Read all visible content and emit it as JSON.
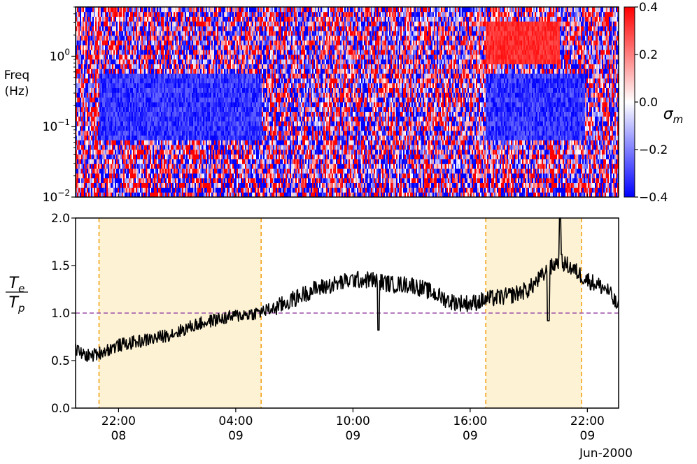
{
  "chart_data": [
    {
      "type": "heatmap",
      "title": "",
      "xlabel": "",
      "ylabel": "Freq\n(Hz)",
      "ylabel_lines": [
        "Freq",
        "(Hz)"
      ],
      "yscale": "log",
      "ylim": [
        0.01,
        5
      ],
      "yticks": [
        {
          "value": 0.01,
          "base": "10",
          "exp": "−2"
        },
        {
          "value": 0.1,
          "base": "10",
          "exp": "−1"
        },
        {
          "value": 1,
          "base": "10",
          "exp": "0"
        }
      ],
      "colorbar": {
        "label": "σ",
        "label_sub": "m",
        "range": [
          -0.4,
          0.4
        ],
        "ticks": [
          "0.4",
          "0.2",
          "0.0",
          "−0.2",
          "−0.4"
        ],
        "tick_values": [
          0.4,
          0.2,
          0.0,
          -0.2,
          -0.4
        ],
        "colormap": "bwr",
        "low_color": "#0000ff",
        "mid_color": "#ffffff",
        "high_color": "#ff0000"
      },
      "blue_regions_hours": [
        [
          -1.0,
          7.3
        ],
        [
          18.8,
          23.9
        ]
      ],
      "blue_band_freq_hz": [
        0.06,
        0.55
      ],
      "red_patch": {
        "hours": [
          18.8,
          22.6
        ],
        "freq_hz": [
          0.8,
          3.0
        ]
      }
    },
    {
      "type": "line",
      "title": "",
      "xlabel": "",
      "ylabel": "Te/Tp",
      "ylabel_num": {
        "base": "T",
        "sub": "e"
      },
      "ylabel_den": {
        "base": "T",
        "sub": "p"
      },
      "ylim": [
        0.0,
        2.0
      ],
      "yticks": [
        "0.0",
        "0.5",
        "1.0",
        "1.5",
        "2.0"
      ],
      "xlim_hours": [
        -2.2,
        25.6
      ],
      "series": [
        {
          "color": "#000000",
          "x_hours": [
            -2.2,
            -1.8,
            -1.4,
            -1.0,
            -0.5,
            0,
            1,
            2,
            3,
            4,
            5,
            6,
            7,
            8,
            9,
            10,
            11,
            12,
            13,
            14,
            15,
            16,
            17,
            18,
            19,
            20,
            21,
            22,
            22.5,
            23,
            24,
            25,
            25.6
          ],
          "y": [
            0.62,
            0.56,
            0.55,
            0.58,
            0.62,
            0.66,
            0.7,
            0.74,
            0.8,
            0.88,
            0.93,
            0.97,
            1.0,
            1.05,
            1.15,
            1.25,
            1.3,
            1.35,
            1.35,
            1.3,
            1.3,
            1.22,
            1.12,
            1.1,
            1.15,
            1.18,
            1.25,
            1.45,
            1.55,
            1.5,
            1.35,
            1.25,
            1.05
          ],
          "noise": 0.07,
          "dips": [
            {
              "x": 13.3,
              "y": 0.82
            },
            {
              "x": 22.0,
              "y": 0.92
            },
            {
              "x": 22.6,
              "y": 2.0
            }
          ]
        }
      ],
      "reference_line": {
        "y": 1.0,
        "color": "#9b4ea8",
        "style": "dashed"
      },
      "shaded_regions_hours": [
        [
          -1.0,
          7.3
        ],
        [
          18.8,
          23.7
        ]
      ],
      "shade_color": "#fdf2d4",
      "boundary_line_color": "#f5a31a"
    }
  ],
  "x_axis": {
    "ticks": [
      {
        "hour": 0,
        "time": "22:00",
        "day": "08"
      },
      {
        "hour": 6,
        "time": "04:00",
        "day": "09"
      },
      {
        "hour": 12,
        "time": "10:00",
        "day": "09"
      },
      {
        "hour": 18,
        "time": "16:00",
        "day": "09"
      },
      {
        "hour": 24,
        "time": "22:00",
        "day": "09"
      }
    ],
    "month_label": "Jun-2000"
  }
}
